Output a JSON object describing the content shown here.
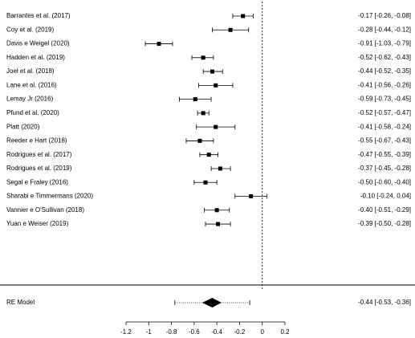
{
  "chart_data": {
    "type": "forest",
    "categories": [
      "Barrantes et al. (2017)",
      "Coy et al. (2019)",
      "Davis e Weigel (2020)",
      "Hadden et al. (2019)",
      "Joel et al. (2018)",
      "Lane et al. (2016)",
      "Lemay Jr (2016)",
      "Pfund et al. (2020)",
      "Platt (2020)",
      "Reeder e Hart (2018)",
      "Rodrigues et al. (2017)",
      "Rodrigues et al. (2019)",
      "Segal e Fraley (2016)",
      "Sharabi e Timmermans (2020)",
      "Vannier e O'Sullivan (2018)",
      "Yuan e Weiser (2019)"
    ],
    "values": [
      -0.17,
      -0.28,
      -0.91,
      -0.52,
      -0.44,
      -0.41,
      -0.59,
      -0.52,
      -0.41,
      -0.55,
      -0.47,
      -0.37,
      -0.5,
      -0.1,
      -0.4,
      -0.39
    ],
    "lower": [
      -0.26,
      -0.44,
      -1.03,
      -0.62,
      -0.52,
      -0.56,
      -0.73,
      -0.57,
      -0.58,
      -0.67,
      -0.55,
      -0.45,
      -0.6,
      -0.24,
      -0.51,
      -0.5
    ],
    "upper": [
      -0.08,
      -0.12,
      -0.79,
      -0.43,
      -0.35,
      -0.26,
      -0.45,
      -0.47,
      -0.24,
      -0.43,
      -0.39,
      -0.28,
      -0.4,
      0.04,
      -0.29,
      -0.28
    ],
    "value_labels": [
      "-0.17 [-0.26, -0.08]",
      "-0.28 [-0.44, -0.12]",
      "-0.91 [-1.03, -0.79]",
      "-0.52 [-0.62, -0.43]",
      "-0.44 [-0.52, -0.35]",
      "-0.41 [-0.56, -0.26]",
      "-0.59 [-0.73, -0.45]",
      "-0.52 [-0.57, -0.47]",
      "-0.41 [-0.58, -0.24]",
      "-0.55 [-0.67, -0.43]",
      "-0.47 [-0.55, -0.39]",
      "-0.37 [-0.45, -0.28]",
      "-0.50 [-0.60, -0.40]",
      "-0.10 [-0.24,  0.04]",
      "-0.40 [-0.51, -0.29]",
      "-0.39 [-0.50, -0.28]"
    ],
    "summary": {
      "label": "RE Model",
      "value": -0.44,
      "lower": -0.53,
      "upper": -0.36,
      "value_label": "-0.44 [-0.53, -0.36]",
      "prediction_interval": [
        -0.77,
        -0.11
      ]
    },
    "xlim": [
      -1.2,
      0.2
    ],
    "xticks": [
      -1.2,
      -1,
      -0.8,
      -0.6,
      -0.4,
      -0.2,
      0,
      0.2
    ],
    "color": "#000000"
  }
}
